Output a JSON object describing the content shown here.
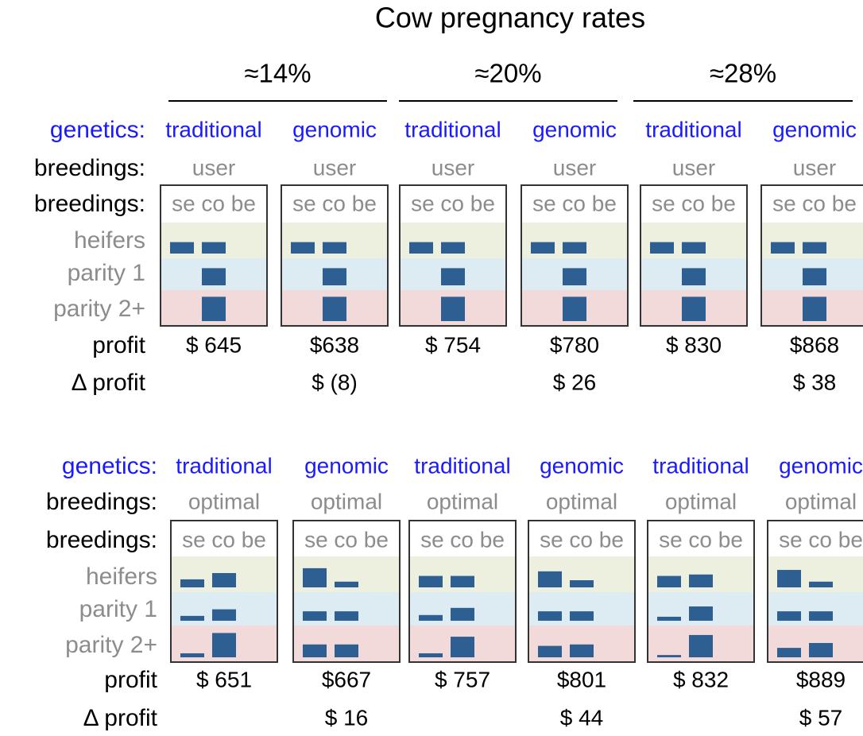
{
  "title": "Cow pregnancy rates",
  "groups": [
    "≈14%",
    "≈20%",
    "≈28%"
  ],
  "labels": {
    "genetics": "genetics:",
    "breedings": "breedings:",
    "heifers": "heifers",
    "parity1": "parity 1",
    "parity2": "parity 2+",
    "profit": "profit",
    "delta": "Δ profit"
  },
  "bar_columns": "se co be",
  "sections": [
    {
      "panels": [
        {
          "genetics": "traditional",
          "breedings": "user",
          "profit": "$ 645",
          "bars": [
            [
              0.4,
              0.4,
              0
            ],
            [
              0,
              0.6,
              0
            ],
            [
              0,
              0.85,
              0
            ]
          ]
        },
        {
          "genetics": "genomic",
          "breedings": "user",
          "profit": "$638",
          "delta_profit": "$ (8)",
          "bars": [
            [
              0.4,
              0.4,
              0
            ],
            [
              0,
              0.6,
              0
            ],
            [
              0,
              0.85,
              0
            ]
          ]
        },
        {
          "genetics": "traditional",
          "breedings": "user",
          "profit": "$ 754",
          "bars": [
            [
              0.4,
              0.4,
              0
            ],
            [
              0,
              0.6,
              0
            ],
            [
              0,
              0.85,
              0
            ]
          ]
        },
        {
          "genetics": "genomic",
          "breedings": "user",
          "profit": "$780",
          "delta_profit": "$ 26",
          "bars": [
            [
              0.4,
              0.4,
              0
            ],
            [
              0,
              0.6,
              0
            ],
            [
              0,
              0.85,
              0
            ]
          ]
        },
        {
          "genetics": "traditional",
          "breedings": "user",
          "profit": "$ 830",
          "bars": [
            [
              0.4,
              0.4,
              0
            ],
            [
              0,
              0.6,
              0
            ],
            [
              0,
              0.85,
              0
            ]
          ]
        },
        {
          "genetics": "genomic",
          "breedings": "user",
          "profit": "$868",
          "delta_profit": "$ 38",
          "bars": [
            [
              0.4,
              0.4,
              0
            ],
            [
              0,
              0.6,
              0
            ],
            [
              0,
              0.85,
              0
            ]
          ]
        }
      ]
    },
    {
      "panels": [
        {
          "genetics": "traditional",
          "breedings": "optimal",
          "profit": "$ 651",
          "bars": [
            [
              0.28,
              0.5,
              0
            ],
            [
              0.17,
              0.4,
              0
            ],
            [
              0.14,
              0.85,
              0
            ]
          ]
        },
        {
          "genetics": "genomic",
          "breedings": "optimal",
          "profit": "$667",
          "delta_profit": "$ 16",
          "bars": [
            [
              0.67,
              0.2,
              0
            ],
            [
              0.33,
              0.33,
              0
            ],
            [
              0.45,
              0.45,
              0
            ]
          ]
        },
        {
          "genetics": "traditional",
          "breedings": "optimal",
          "profit": "$ 757",
          "bars": [
            [
              0.4,
              0.4,
              0
            ],
            [
              0.2,
              0.45,
              0
            ],
            [
              0.14,
              0.72,
              0
            ]
          ]
        },
        {
          "genetics": "genomic",
          "breedings": "optimal",
          "profit": "$801",
          "delta_profit": "$ 44",
          "bars": [
            [
              0.56,
              0.25,
              0
            ],
            [
              0.33,
              0.33,
              0
            ],
            [
              0.4,
              0.45,
              0
            ]
          ]
        },
        {
          "genetics": "traditional",
          "breedings": "optimal",
          "profit": "$ 832",
          "bars": [
            [
              0.4,
              0.45,
              0
            ],
            [
              0.14,
              0.5,
              0
            ],
            [
              0.08,
              0.78,
              0
            ]
          ]
        },
        {
          "genetics": "genomic",
          "breedings": "optimal",
          "profit": "$889",
          "delta_profit": "$ 57",
          "bars": [
            [
              0.61,
              0.2,
              0
            ],
            [
              0.33,
              0.33,
              0
            ],
            [
              0.33,
              0.5,
              0
            ]
          ]
        }
      ]
    }
  ]
}
